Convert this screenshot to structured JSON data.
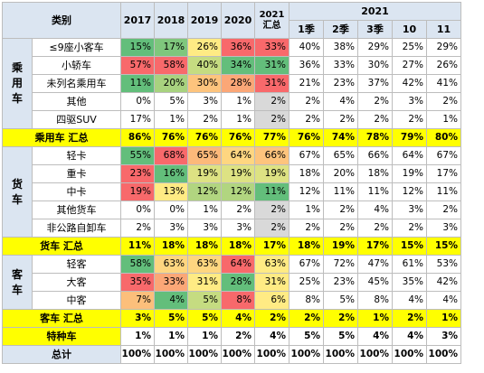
{
  "header": {
    "category": "类别",
    "years": [
      "2017",
      "2018",
      "2019",
      "2020"
    ],
    "total_2021_year": "2021",
    "total_2021_label": "汇总",
    "group_2021": "2021",
    "periods": [
      "1季",
      "2季",
      "3季",
      "10",
      "11"
    ]
  },
  "colors": {
    "red": "#f8696b",
    "green": "#63be7b",
    "yellow_band": "#ffff00",
    "header_bg": "#dbe5f1",
    "grey_low": "#d9d9d9"
  },
  "sections": [
    {
      "label": "乘用车",
      "rows": [
        {
          "name": "≤9座小客车",
          "values": [
            "15%",
            "17%",
            "26%",
            "36%",
            "33%",
            "40%",
            "38%",
            "29%",
            "25%",
            "29%"
          ],
          "bg": [
            "#63be7b",
            "#7fc77d",
            "#ffeb84",
            "#f8696b",
            "#f8696b",
            "",
            "",
            "",
            "",
            ""
          ]
        },
        {
          "name": "小轿车",
          "values": [
            "57%",
            "58%",
            "40%",
            "34%",
            "31%",
            "36%",
            "33%",
            "30%",
            "27%",
            "26%"
          ],
          "bg": [
            "#f8696b",
            "#f8696b",
            "#c5dc81",
            "#63be7b",
            "#63be7b",
            "",
            "",
            "",
            "",
            ""
          ]
        },
        {
          "name": "未列名乘用车",
          "values": [
            "11%",
            "20%",
            "30%",
            "28%",
            "31%",
            "21%",
            "23%",
            "37%",
            "42%",
            "41%"
          ],
          "bg": [
            "#63be7b",
            "#a8d27f",
            "#fdc47d",
            "#fba777",
            "#f8696b",
            "",
            "",
            "",
            "",
            ""
          ]
        },
        {
          "name": "其他",
          "values": [
            "0%",
            "5%",
            "3%",
            "1%",
            "2%",
            "2%",
            "4%",
            "2%",
            "3%",
            "2%"
          ],
          "bg": [
            "",
            "",
            "",
            "",
            "#d9d9d9",
            "",
            "",
            "",
            "",
            ""
          ]
        },
        {
          "name": "四驱SUV",
          "values": [
            "17%",
            "1%",
            "2%",
            "1%",
            "2%",
            "2%",
            "2%",
            "2%",
            "2%",
            "1%"
          ],
          "bg": [
            "",
            "",
            "",
            "",
            "#d9d9d9",
            "",
            "",
            "",
            "",
            ""
          ]
        }
      ],
      "total": {
        "name": "乘用车 汇总",
        "values": [
          "86%",
          "76%",
          "76%",
          "76%",
          "77%",
          "76%",
          "74%",
          "78%",
          "79%",
          "80%"
        ]
      }
    },
    {
      "label": "货车",
      "rows": [
        {
          "name": "轻卡",
          "values": [
            "55%",
            "68%",
            "65%",
            "64%",
            "66%",
            "67%",
            "65%",
            "66%",
            "64%",
            "67%"
          ],
          "bg": [
            "#63be7b",
            "#f8696b",
            "#fcb97a",
            "#fed680",
            "#fdc47d",
            "",
            "",
            "",
            "",
            ""
          ]
        },
        {
          "name": "重卡",
          "values": [
            "23%",
            "16%",
            "19%",
            "19%",
            "19%",
            "18%",
            "20%",
            "18%",
            "19%",
            "17%"
          ],
          "bg": [
            "#f8696b",
            "#63be7b",
            "#dde283",
            "#dde283",
            "#dde283",
            "",
            "",
            "",
            "",
            ""
          ]
        },
        {
          "name": "中卡",
          "values": [
            "19%",
            "13%",
            "12%",
            "12%",
            "11%",
            "12%",
            "11%",
            "11%",
            "12%",
            "11%"
          ],
          "bg": [
            "#f8696b",
            "#ffeb84",
            "#b1d580",
            "#b1d580",
            "#63be7b",
            "",
            "",
            "",
            "",
            ""
          ]
        },
        {
          "name": "其他货车",
          "values": [
            "0%",
            "0%",
            "1%",
            "2%",
            "2%",
            "1%",
            "2%",
            "4%",
            "3%",
            "2%"
          ],
          "bg": [
            "",
            "",
            "",
            "",
            "#d9d9d9",
            "",
            "",
            "",
            "",
            ""
          ]
        },
        {
          "name": "非公路自卸车",
          "values": [
            "2%",
            "3%",
            "3%",
            "3%",
            "2%",
            "2%",
            "2%",
            "2%",
            "2%",
            "3%"
          ],
          "bg": [
            "",
            "",
            "",
            "",
            "#d9d9d9",
            "",
            "",
            "",
            "",
            ""
          ]
        }
      ],
      "total": {
        "name": "货车 汇总",
        "values": [
          "11%",
          "18%",
          "18%",
          "18%",
          "17%",
          "18%",
          "19%",
          "17%",
          "15%",
          "15%"
        ]
      }
    },
    {
      "label": "客车",
      "rows": [
        {
          "name": "轻客",
          "values": [
            "58%",
            "63%",
            "63%",
            "64%",
            "63%",
            "67%",
            "72%",
            "47%",
            "61%",
            "53%"
          ],
          "bg": [
            "#63be7b",
            "#fed680",
            "#fed680",
            "#f8696b",
            "#ffeb84",
            "",
            "",
            "",
            "",
            ""
          ]
        },
        {
          "name": "大客",
          "values": [
            "35%",
            "33%",
            "31%",
            "28%",
            "31%",
            "25%",
            "23%",
            "45%",
            "35%",
            "42%"
          ],
          "bg": [
            "#f8696b",
            "#fba777",
            "#ffeb84",
            "#63be7b",
            "#ffeb84",
            "",
            "",
            "",
            "",
            ""
          ]
        },
        {
          "name": "中客",
          "values": [
            "7%",
            "4%",
            "5%",
            "8%",
            "6%",
            "8%",
            "5%",
            "8%",
            "4%",
            "4%"
          ],
          "bg": [
            "#fcbf7b",
            "#63be7b",
            "#c5dc81",
            "#f8696b",
            "#ffeb84",
            "",
            "",
            "",
            "",
            ""
          ]
        }
      ],
      "total": {
        "name": "客车 汇总",
        "values": [
          "3%",
          "5%",
          "5%",
          "4%",
          "2%",
          "2%",
          "2%",
          "1%",
          "2%",
          "1%"
        ]
      }
    }
  ],
  "special": {
    "name": "特种车",
    "values": [
      "1%",
      "1%",
      "1%",
      "2%",
      "4%",
      "5%",
      "5%",
      "4%",
      "4%",
      "3%"
    ]
  },
  "grand_total": {
    "name": "总计",
    "values": [
      "100%",
      "100%",
      "100%",
      "100%",
      "100%",
      "100%",
      "100%",
      "100%",
      "100%",
      "100%"
    ]
  }
}
